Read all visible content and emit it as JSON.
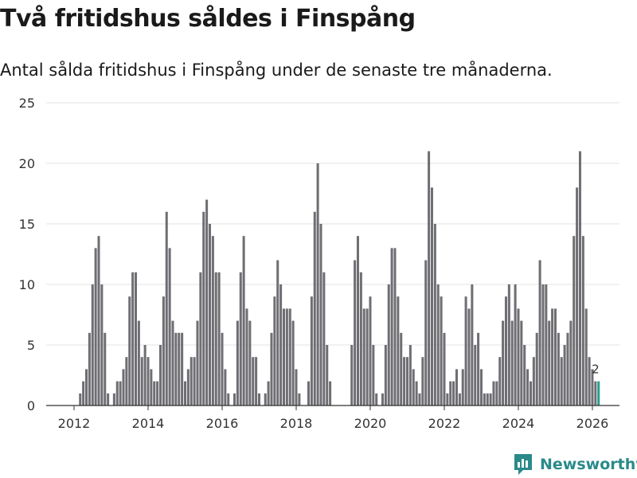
{
  "header": {
    "title": "Två fritidshus såldes i Finspång",
    "subtitle": "Antal sålda fritidshus i Finspång under de senaste tre månaderna."
  },
  "brand": {
    "name": "Newsworthy",
    "icon": "newsworthy-logo-icon"
  },
  "colors": {
    "bar": "#6e6e73",
    "highlight": "#2a9d8f",
    "grid": "#e3e3e3",
    "axis": "#333333",
    "brand": "#2a8a8a"
  },
  "chart_data": {
    "type": "bar",
    "title": "Två fritidshus såldes i Finspång",
    "subtitle": "Antal sålda fritidshus i Finspång under de senaste tre månaderna.",
    "xlabel": "",
    "ylabel": "",
    "ylim": [
      0,
      25
    ],
    "yticks": [
      0,
      5,
      10,
      15,
      20,
      25
    ],
    "xticks": [
      2012,
      2014,
      2016,
      2018,
      2020,
      2022,
      2024,
      2026
    ],
    "x_start": 2011.5,
    "x_step": 0.08333,
    "grid": true,
    "annotation": {
      "value": "2",
      "index": 175
    },
    "values": [
      0,
      0,
      0,
      0,
      0,
      0,
      0,
      0,
      1,
      2,
      3,
      6,
      10,
      13,
      14,
      10,
      6,
      1,
      0,
      1,
      2,
      2,
      3,
      4,
      9,
      11,
      11,
      7,
      4,
      5,
      4,
      3,
      2,
      2,
      5,
      9,
      16,
      13,
      7,
      6,
      6,
      6,
      2,
      3,
      4,
      4,
      7,
      11,
      16,
      17,
      15,
      14,
      11,
      11,
      6,
      3,
      1,
      0,
      1,
      7,
      11,
      14,
      8,
      7,
      4,
      4,
      1,
      0,
      1,
      2,
      6,
      9,
      12,
      10,
      8,
      8,
      8,
      7,
      3,
      1,
      0,
      0,
      2,
      9,
      16,
      20,
      15,
      11,
      5,
      2,
      0,
      0,
      0,
      0,
      0,
      0,
      5,
      12,
      14,
      11,
      8,
      8,
      9,
      5,
      1,
      0,
      1,
      5,
      10,
      13,
      13,
      9,
      6,
      4,
      4,
      5,
      3,
      2,
      1,
      4,
      12,
      21,
      18,
      15,
      10,
      9,
      6,
      1,
      2,
      2,
      3,
      1,
      3,
      9,
      8,
      10,
      5,
      6,
      3,
      1,
      1,
      1,
      2,
      2,
      4,
      7,
      9,
      10,
      7,
      10,
      8,
      7,
      5,
      3,
      2,
      4,
      6,
      12,
      10,
      10,
      7,
      8,
      8,
      6,
      4,
      5,
      6,
      7,
      14,
      18,
      21,
      14,
      8,
      4,
      3,
      2,
      2
    ]
  }
}
